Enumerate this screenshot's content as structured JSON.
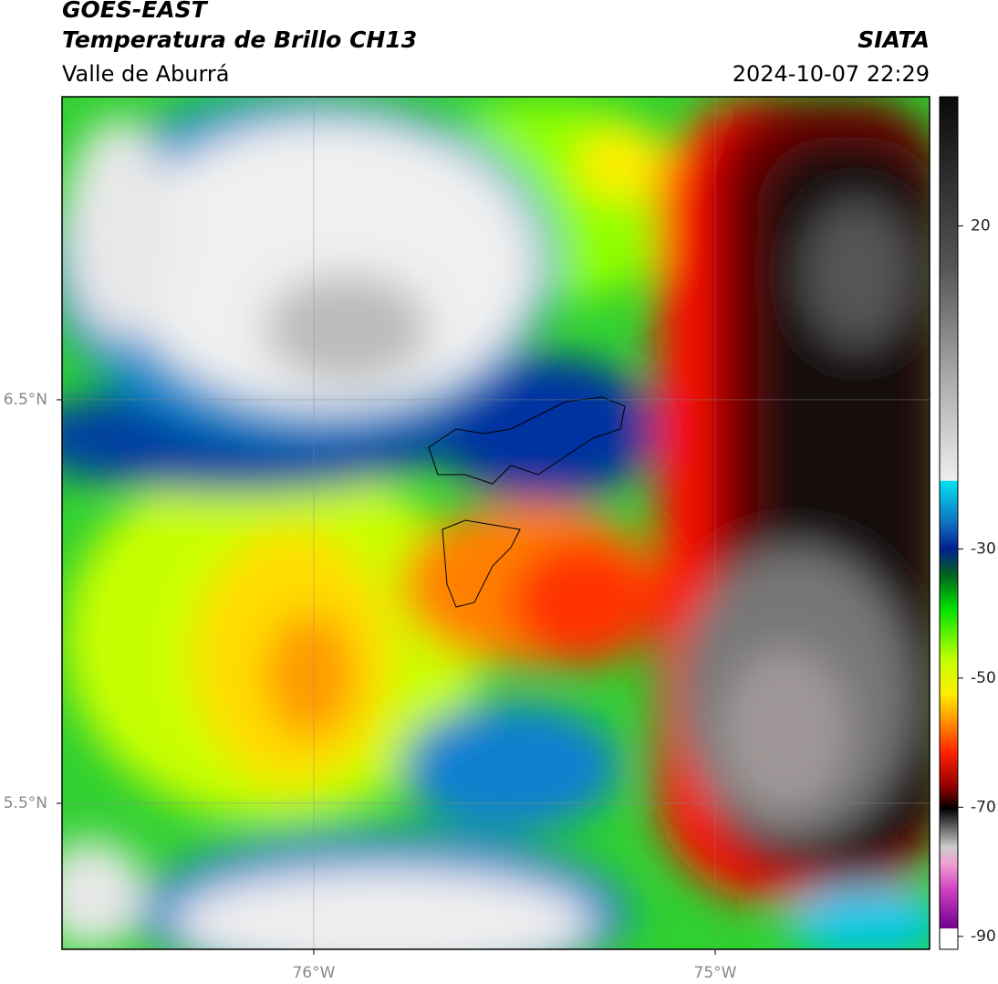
{
  "header": {
    "title": "GOES-EAST",
    "subtitle": "Temperatura de Brillo CH13",
    "region": "Valle de Aburrá",
    "source": "SIATA",
    "datetime": "2024-10-07 22:29"
  },
  "map": {
    "xlim": [
      -76.627,
      -74.466
    ],
    "ylim": [
      5.138,
      7.251
    ],
    "xticks": [
      {
        "value": -76,
        "label": "76°W"
      },
      {
        "value": -75,
        "label": "75°W"
      }
    ],
    "yticks": [
      {
        "value": 6.5,
        "label": "6.5°N"
      },
      {
        "value": 5.5,
        "label": "5.5°N"
      }
    ]
  },
  "colorbar": {
    "lim": [
      -92,
      40
    ],
    "ticks": [
      20,
      -30,
      -50,
      -70,
      -90
    ]
  }
}
